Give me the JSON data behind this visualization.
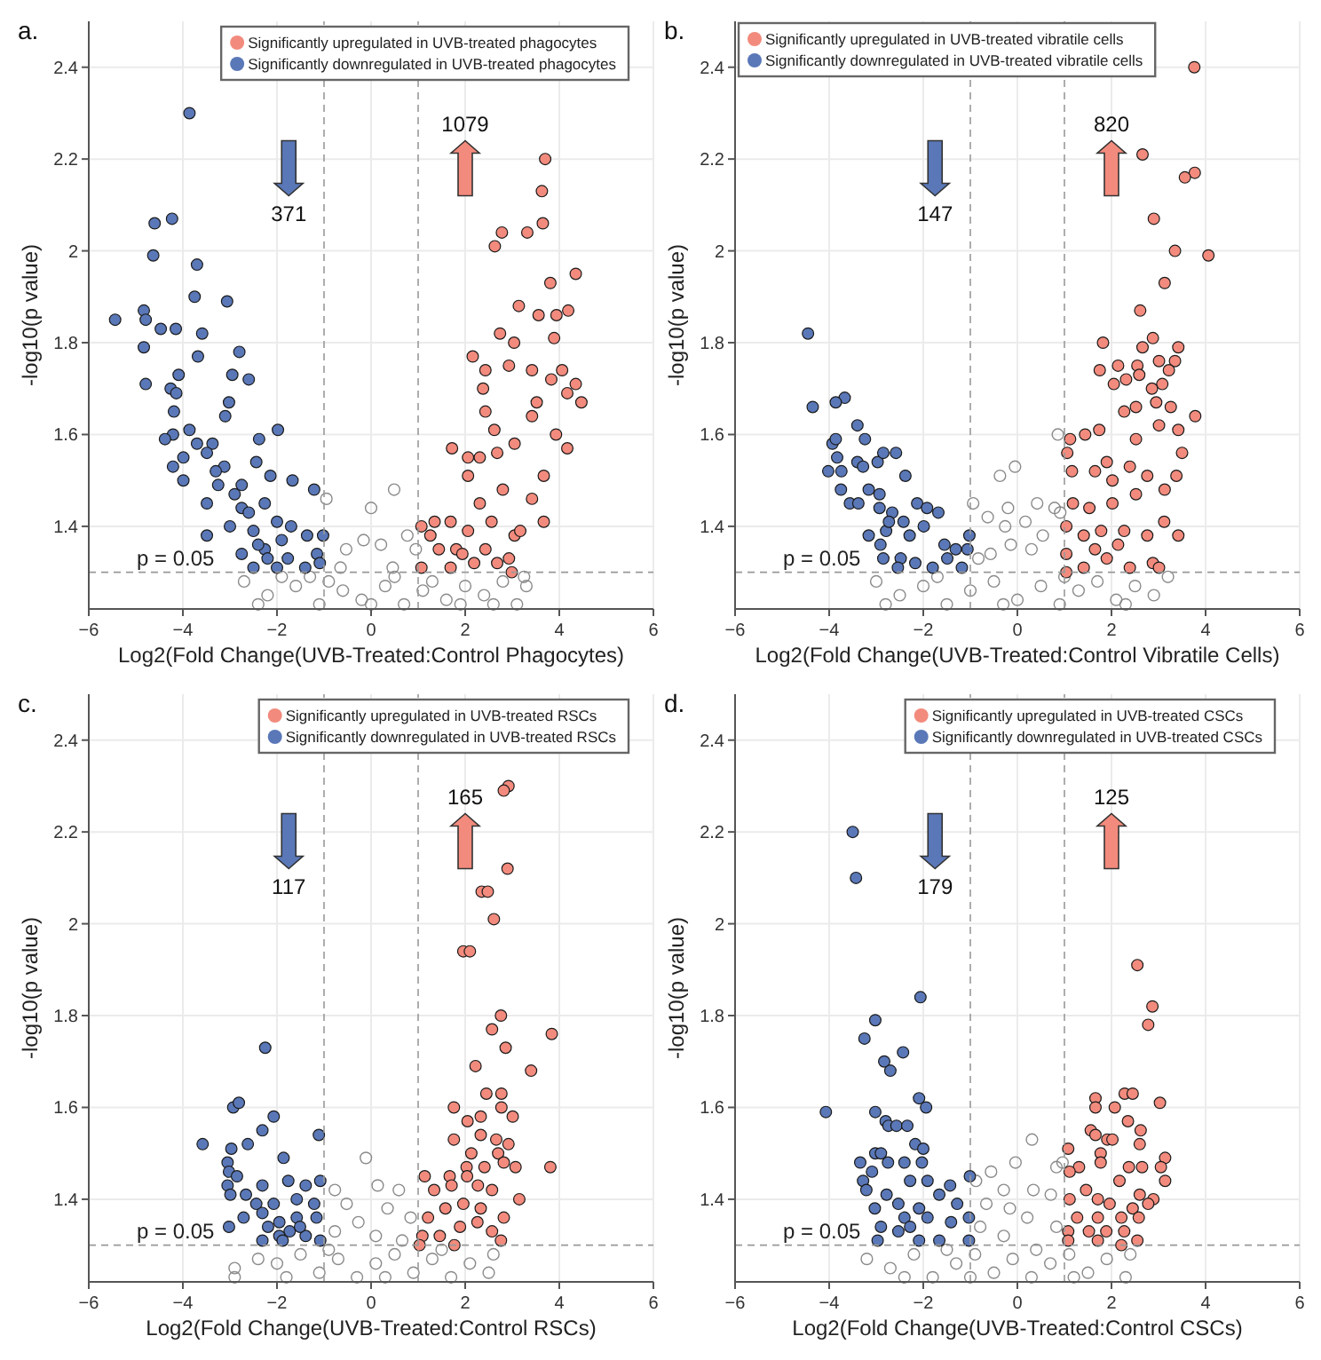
{
  "chart_data": [
    {
      "type": "scatter",
      "title": "a.",
      "xlabel": "Log2(Fold Change(UVB-Treated:Control Phagocytes)",
      "ylabel": "-log10(p value)",
      "xlim": [
        -6,
        6
      ],
      "ylim": [
        1.22,
        2.5
      ],
      "xticks": [
        -6,
        -4,
        -2,
        0,
        2,
        4,
        6
      ],
      "yticks": [
        1.4,
        1.6,
        1.8,
        2,
        2.2,
        2.4
      ],
      "grid": true,
      "legend": "top right",
      "marker": "circle",
      "annotations": [
        "371",
        "1079",
        "p = 0.05"
      ],
      "ref_lines": [
        {
          "axis": "x",
          "value": -1,
          "color": "#999999",
          "line_style": "dashed"
        },
        {
          "axis": "x",
          "value": 1,
          "color": "#999999",
          "line_style": "dashed"
        },
        {
          "axis": "y",
          "value": 1.3,
          "color": "#999999",
          "line_style": "dashed"
        }
      ],
      "series": [
        {
          "color": "#8a8a8a",
          "x": [
            0.49,
            0,
            -0.95,
            -0.16,
            0.77,
            -0.53,
            0.21,
            0.95,
            0.46,
            -0.65,
            -2.7,
            -2.2,
            -1.6,
            -1.1,
            -0.6,
            -0.2,
            0.3,
            0.7,
            1.1,
            1.6,
            2.0,
            2.4,
            2.8,
            3.1,
            3.3,
            -2.4,
            -1.3,
            -0.9,
            0.0,
            0.5,
            1.3,
            1.9,
            2.6,
            -1.9,
            3.25
          ],
          "values": [
            1.48,
            1.44,
            1.46,
            1.37,
            1.38,
            1.35,
            1.36,
            1.35,
            1.31,
            1.31,
            1.28,
            1.25,
            1.27,
            1.23,
            1.26,
            1.24,
            1.27,
            1.23,
            1.26,
            1.24,
            1.27,
            1.25,
            1.28,
            1.23,
            1.27,
            1.23,
            1.29,
            1.28,
            1.23,
            1.29,
            1.28,
            1.23,
            1.23,
            1.29,
            1.29
          ]
        },
        {
          "name": "Significantly upregulated in UVB-treated phagocytes",
          "color": "#f28b7d",
          "x": [
            3.7,
            3.63,
            3.65,
            2.78,
            3.32,
            2.63,
            4.35,
            3.81,
            3.14,
            3.56,
            4.19,
            3.94,
            3.89,
            2.74,
            3.04,
            2.16,
            2.43,
            2.93,
            3.42,
            4.06,
            3.83,
            4.35,
            4.17,
            4.47,
            3.52,
            1.72,
            4.17,
            3.93,
            3.42,
            2.43,
            2.06,
            2.68,
            3.05,
            3.67,
            3.42,
            3.67,
            1.07,
            1.35,
            1.26,
            1.44,
            1.07,
            1.69,
            1.81,
            2.06,
            2.31,
            2.56,
            2.8,
            3.05,
            2.19,
            2.68,
            1.94,
            2.43,
            2.93,
            2.06,
            2.62,
            2.38,
            3.17,
            1.69,
            2.99,
            2.31
          ],
          "values": [
            2.2,
            2.13,
            2.06,
            2.04,
            2.04,
            2.01,
            1.95,
            1.93,
            1.88,
            1.86,
            1.87,
            1.86,
            1.81,
            1.82,
            1.8,
            1.77,
            1.74,
            1.75,
            1.74,
            1.74,
            1.72,
            1.71,
            1.69,
            1.67,
            1.67,
            1.57,
            1.57,
            1.6,
            1.64,
            1.65,
            1.55,
            1.56,
            1.58,
            1.51,
            1.46,
            1.41,
            1.4,
            1.41,
            1.38,
            1.35,
            1.31,
            1.41,
            1.35,
            1.51,
            1.45,
            1.41,
            1.48,
            1.38,
            1.32,
            1.32,
            1.34,
            1.35,
            1.33,
            1.39,
            1.61,
            1.7,
            1.39,
            1.31,
            1.3,
            1.55
          ]
        },
        {
          "name": "Significantly downregulated in UVB-treated phagocytes",
          "color": "#5a78b8",
          "x": [
            -3.86,
            -4.6,
            -4.23,
            -4.63,
            -3.7,
            -5.44,
            -4.83,
            -4.79,
            -3.75,
            -3.06,
            -4.47,
            -4.15,
            -3.59,
            -4.83,
            -2.8,
            -3.68,
            -4.79,
            -4.09,
            -2.95,
            -2.6,
            -4.26,
            -4.14,
            -3.02,
            -4.19,
            -3.1,
            -1.98,
            -4.21,
            -4.38,
            -3.37,
            -3.86,
            -2.38,
            -4.21,
            -3.99,
            -3.49,
            -3.12,
            -2.44,
            -3.99,
            -3.25,
            -2.75,
            -2.14,
            -1.67,
            -1.21,
            -3.49,
            -2.75,
            -2.26,
            -3.49,
            -3.0,
            -2.5,
            -2.0,
            -1.7,
            -1.36,
            -1.02,
            -2.75,
            -2.26,
            -1.77,
            -1.15,
            -2.5,
            -2.0,
            -1.4,
            -1.09,
            -2.9,
            -2.6,
            -3.3,
            -2.4,
            -1.9,
            -3.7,
            -2.2
          ],
          "values": [
            2.3,
            2.06,
            2.07,
            1.99,
            1.97,
            1.85,
            1.87,
            1.85,
            1.9,
            1.89,
            1.83,
            1.83,
            1.82,
            1.79,
            1.78,
            1.77,
            1.71,
            1.73,
            1.73,
            1.72,
            1.7,
            1.69,
            1.67,
            1.65,
            1.64,
            1.61,
            1.6,
            1.59,
            1.58,
            1.61,
            1.59,
            1.53,
            1.55,
            1.56,
            1.53,
            1.54,
            1.5,
            1.49,
            1.49,
            1.51,
            1.5,
            1.48,
            1.45,
            1.44,
            1.45,
            1.38,
            1.4,
            1.39,
            1.41,
            1.4,
            1.38,
            1.38,
            1.34,
            1.35,
            1.33,
            1.34,
            1.31,
            1.31,
            1.31,
            1.32,
            1.47,
            1.43,
            1.52,
            1.36,
            1.37,
            1.58,
            1.33
          ]
        }
      ]
    },
    {
      "type": "scatter",
      "title": "b.",
      "xlabel": "Log2(Fold Change(UVB-Treated:Control Vibratile Cells)",
      "ylabel": "-log10(p value)",
      "xlim": [
        -6,
        6
      ],
      "ylim": [
        1.22,
        2.5
      ],
      "xticks": [
        -6,
        -4,
        -2,
        0,
        2,
        4,
        6
      ],
      "yticks": [
        1.4,
        1.6,
        1.8,
        2,
        2.2,
        2.4
      ],
      "grid": true,
      "legend": "top left",
      "marker": "circle",
      "annotations": [
        "147",
        "820",
        "p = 0.05"
      ],
      "ref_lines": [
        {
          "axis": "x",
          "value": -1,
          "color": "#999999",
          "line_style": "dashed"
        },
        {
          "axis": "x",
          "value": 1,
          "color": "#999999",
          "line_style": "dashed"
        },
        {
          "axis": "y",
          "value": 1.3,
          "color": "#999999",
          "line_style": "dashed"
        }
      ],
      "series": [
        {
          "color": "#8a8a8a",
          "x": [
            0.86,
            -0.05,
            -0.37,
            -0.94,
            -0.2,
            0.42,
            0.79,
            -0.63,
            0.17,
            -0.26,
            -0.14,
            -0.57,
            0.3,
            0.54,
            0.91,
            -0.83,
            -3.0,
            -2.5,
            -2.0,
            -1.5,
            -1.0,
            -0.5,
            0.0,
            0.5,
            0.9,
            1.3,
            1.7,
            2.1,
            2.5,
            2.9,
            3.2,
            -2.8,
            -1.7,
            -0.3,
            1.0,
            2.3
          ],
          "values": [
            1.6,
            1.53,
            1.51,
            1.45,
            1.44,
            1.45,
            1.44,
            1.42,
            1.41,
            1.4,
            1.36,
            1.34,
            1.35,
            1.38,
            1.43,
            1.33,
            1.28,
            1.25,
            1.27,
            1.23,
            1.26,
            1.28,
            1.24,
            1.27,
            1.23,
            1.26,
            1.28,
            1.24,
            1.27,
            1.25,
            1.29,
            1.23,
            1.29,
            1.23,
            1.29,
            1.23
          ]
        },
        {
          "name": "Significantly upregulated in UVB-treated vibratile cells",
          "color": "#f28b7d",
          "x": [
            3.76,
            2.66,
            3.77,
            3.56,
            2.9,
            3.35,
            4.06,
            3.13,
            2.61,
            2.88,
            1.82,
            3.42,
            2.66,
            1.75,
            2.14,
            2.55,
            3.01,
            3.35,
            3.22,
            2.31,
            2.05,
            2.59,
            3.08,
            2.86,
            2.52,
            2.95,
            3.26,
            2.27,
            3.78,
            3.01,
            3.42,
            1.12,
            1.44,
            1.74,
            2.52,
            1.06,
            1.9,
            3.5,
            1.16,
            1.65,
            2.02,
            2.39,
            2.76,
            3.13,
            3.38,
            1.18,
            1.53,
            2.02,
            2.52,
            3.12,
            3.42,
            1.04,
            1.41,
            1.78,
            2.27,
            2.76,
            1.04,
            1.41,
            1.9,
            2.39,
            2.88,
            3.01,
            2.14,
            1.65,
            1.04
          ],
          "values": [
            2.4,
            2.21,
            2.17,
            2.16,
            2.07,
            2.0,
            1.99,
            1.93,
            1.87,
            1.81,
            1.8,
            1.79,
            1.79,
            1.74,
            1.75,
            1.75,
            1.76,
            1.76,
            1.74,
            1.72,
            1.71,
            1.73,
            1.71,
            1.7,
            1.66,
            1.67,
            1.66,
            1.65,
            1.64,
            1.62,
            1.61,
            1.59,
            1.6,
            1.61,
            1.59,
            1.56,
            1.54,
            1.56,
            1.52,
            1.52,
            1.5,
            1.53,
            1.51,
            1.48,
            1.51,
            1.45,
            1.44,
            1.45,
            1.47,
            1.41,
            1.38,
            1.4,
            1.38,
            1.39,
            1.39,
            1.38,
            1.34,
            1.31,
            1.33,
            1.31,
            1.32,
            1.31,
            1.36,
            1.35,
            1.3
          ]
        },
        {
          "name": "Significantly downregulated in UVB-treated vibratile cells",
          "color": "#5a78b8",
          "x": [
            -4.45,
            -4.35,
            -3.67,
            -3.86,
            -3.4,
            -3.24,
            -3.93,
            -3.86,
            -3.83,
            -4.02,
            -3.74,
            -3.4,
            -3.28,
            -2.97,
            -2.85,
            -2.58,
            -3.75,
            -3.56,
            -3.38,
            -3.16,
            -2.93,
            -2.38,
            -2.13,
            -1.92,
            -1.68,
            -2.93,
            -2.66,
            -2.42,
            -3.16,
            -2.79,
            -2.29,
            -1.99,
            -1.55,
            -1.31,
            -1.02,
            -1.06,
            -2.85,
            -2.48,
            -2.17,
            -1.8,
            -1.49,
            -1.18,
            -2.54,
            -2.91,
            -2.73
          ],
          "values": [
            1.82,
            1.66,
            1.68,
            1.67,
            1.62,
            1.59,
            1.58,
            1.59,
            1.55,
            1.52,
            1.52,
            1.54,
            1.53,
            1.54,
            1.56,
            1.56,
            1.48,
            1.45,
            1.45,
            1.48,
            1.47,
            1.51,
            1.45,
            1.44,
            1.43,
            1.44,
            1.43,
            1.41,
            1.38,
            1.39,
            1.38,
            1.4,
            1.36,
            1.35,
            1.38,
            1.35,
            1.33,
            1.33,
            1.32,
            1.31,
            1.33,
            1.31,
            1.31,
            1.36,
            1.41
          ]
        }
      ]
    },
    {
      "type": "scatter",
      "title": "c.",
      "xlabel": "Log2(Fold Change(UVB-Treated:Control RSCs)",
      "ylabel": "-log10(p value)",
      "xlim": [
        -6,
        6
      ],
      "ylim": [
        1.22,
        2.5
      ],
      "xticks": [
        -6,
        -4,
        -2,
        0,
        2,
        4,
        6
      ],
      "yticks": [
        1.4,
        1.6,
        1.8,
        2,
        2.2,
        2.4
      ],
      "grid": true,
      "legend": "top right",
      "marker": "circle",
      "annotations": [
        "117",
        "165",
        "p = 0.05"
      ],
      "ref_lines": [
        {
          "axis": "x",
          "value": -1,
          "color": "#999999",
          "line_style": "dashed"
        },
        {
          "axis": "x",
          "value": 1,
          "color": "#999999",
          "line_style": "dashed"
        },
        {
          "axis": "y",
          "value": 1.3,
          "color": "#999999",
          "line_style": "dashed"
        }
      ],
      "series": [
        {
          "color": "#8a8a8a",
          "x": [
            -0.11,
            0.14,
            -0.77,
            0.59,
            -0.52,
            0.35,
            -0.27,
            0.84,
            -0.77,
            0.1,
            0.66,
            -2.9,
            -2.4,
            -2.9,
            -2.0,
            -1.5,
            -1.1,
            -0.7,
            -0.3,
            0.1,
            0.5,
            0.9,
            1.3,
            1.7,
            2.1,
            2.5,
            2.6,
            -1.8,
            0.3,
            1.5,
            -0.9
          ],
          "values": [
            1.49,
            1.43,
            1.42,
            1.42,
            1.39,
            1.38,
            1.35,
            1.36,
            1.33,
            1.32,
            1.31,
            1.25,
            1.27,
            1.23,
            1.26,
            1.28,
            1.24,
            1.27,
            1.23,
            1.26,
            1.28,
            1.24,
            1.27,
            1.23,
            1.26,
            1.24,
            1.28,
            1.23,
            1.23,
            1.29,
            1.29
          ]
        },
        {
          "name": "Significantly upregulated in UVB-treated RSCs",
          "color": "#f28b7d",
          "x": [
            2.92,
            2.82,
            2.9,
            2.35,
            2.48,
            2.61,
            1.96,
            2.1,
            2.76,
            2.57,
            3.84,
            2.86,
            2.22,
            3.4,
            2.45,
            2.77,
            1.76,
            2.77,
            3.01,
            2.05,
            2.33,
            1.76,
            2.33,
            2.66,
            2.92,
            2.13,
            2.7,
            2.03,
            2.41,
            2.82,
            3.07,
            3.81,
            2.04,
            1.67,
            3.15,
            1.14,
            1.34,
            1.71,
            2.27,
            2.57,
            1.21,
            1.58,
            1.96,
            2.33,
            2.82,
            1.09,
            1.46,
            1.89,
            2.26,
            2.57,
            2.76,
            1.77,
            1.03
          ],
          "values": [
            2.3,
            2.29,
            2.12,
            2.07,
            2.07,
            2.01,
            1.94,
            1.94,
            1.8,
            1.77,
            1.76,
            1.73,
            1.69,
            1.68,
            1.63,
            1.63,
            1.6,
            1.6,
            1.58,
            1.57,
            1.58,
            1.53,
            1.54,
            1.53,
            1.52,
            1.5,
            1.5,
            1.47,
            1.47,
            1.48,
            1.47,
            1.47,
            1.45,
            1.45,
            1.4,
            1.45,
            1.42,
            1.43,
            1.43,
            1.42,
            1.36,
            1.38,
            1.39,
            1.38,
            1.36,
            1.32,
            1.32,
            1.34,
            1.35,
            1.33,
            1.31,
            1.3,
            1.3
          ]
        },
        {
          "name": "Significantly downregulated in UVB-treated RSCs",
          "color": "#5a78b8",
          "x": [
            -2.25,
            -3.58,
            -2.93,
            -2.81,
            -2.07,
            -2.31,
            -2.62,
            -2.97,
            -1.11,
            -1.86,
            -3.05,
            -3.02,
            -2.85,
            -3.05,
            -2.31,
            -1.76,
            -1.39,
            -1.08,
            -2.99,
            -2.66,
            -2.44,
            -2.07,
            -1.58,
            -1.21,
            -2.71,
            -2.31,
            -1.95,
            -1.58,
            -1.16,
            -3.02,
            -2.19,
            -1.73,
            -1.95,
            -1.39,
            -1.08,
            -2.31,
            -1.88,
            -1.51
          ],
          "values": [
            1.73,
            1.52,
            1.6,
            1.61,
            1.58,
            1.55,
            1.52,
            1.51,
            1.54,
            1.49,
            1.48,
            1.46,
            1.45,
            1.43,
            1.43,
            1.44,
            1.43,
            1.44,
            1.41,
            1.41,
            1.39,
            1.39,
            1.4,
            1.39,
            1.36,
            1.37,
            1.35,
            1.36,
            1.36,
            1.34,
            1.34,
            1.33,
            1.32,
            1.32,
            1.31,
            1.31,
            1.31,
            1.34
          ]
        }
      ]
    },
    {
      "type": "scatter",
      "title": "d.",
      "xlabel": "Log2(Fold Change(UVB-Treated:Control CSCs)",
      "ylabel": "-log10(p value)",
      "xlim": [
        -6,
        6
      ],
      "ylim": [
        1.22,
        2.5
      ],
      "xticks": [
        -6,
        -4,
        -2,
        0,
        2,
        4,
        6
      ],
      "yticks": [
        1.4,
        1.6,
        1.8,
        2,
        2.2,
        2.4
      ],
      "grid": true,
      "legend": "top right",
      "marker": "circle",
      "annotations": [
        "179",
        "125",
        "p = 0.05"
      ],
      "ref_lines": [
        {
          "axis": "x",
          "value": -1,
          "color": "#999999",
          "line_style": "dashed"
        },
        {
          "axis": "x",
          "value": 1,
          "color": "#999999",
          "line_style": "dashed"
        },
        {
          "axis": "y",
          "value": 1.3,
          "color": "#999999",
          "line_style": "dashed"
        }
      ],
      "series": [
        {
          "color": "#8a8a8a",
          "x": [
            -0.04,
            0.31,
            -0.56,
            -0.88,
            0.96,
            0.83,
            -0.29,
            0.34,
            -0.66,
            0.71,
            -0.16,
            0.21,
            -0.79,
            0.83,
            -0.29,
            -3.2,
            -2.7,
            -2.2,
            -1.8,
            -1.3,
            -0.9,
            -0.5,
            -0.1,
            0.3,
            0.7,
            1.1,
            1.5,
            1.9,
            2.3,
            2.4,
            -2.4,
            -1.0,
            1.2,
            0.4,
            -1.5
          ],
          "values": [
            1.48,
            1.53,
            1.46,
            1.44,
            1.48,
            1.47,
            1.42,
            1.42,
            1.39,
            1.41,
            1.38,
            1.36,
            1.34,
            1.34,
            1.32,
            1.27,
            1.25,
            1.28,
            1.23,
            1.26,
            1.28,
            1.24,
            1.27,
            1.23,
            1.26,
            1.28,
            1.24,
            1.27,
            1.23,
            1.28,
            1.23,
            1.23,
            1.23,
            1.29,
            1.29
          ]
        },
        {
          "name": "Significantly upregulated in UVB-treated CSCs",
          "color": "#f28b7d",
          "x": [
            2.55,
            2.87,
            2.78,
            2.28,
            2.45,
            3.03,
            1.66,
            1.66,
            2.07,
            2.35,
            2.62,
            1.56,
            1.66,
            1.91,
            2.02,
            1.08,
            1.77,
            2.6,
            3.14,
            1.77,
            2.65,
            1.31,
            2.37,
            3.05,
            1.11,
            3.14,
            2.17,
            2.6,
            2.89,
            1.11,
            1.46,
            1.71,
            1.96,
            2.45,
            2.78,
            1.27,
            1.71,
            2.21,
            2.58,
            1.08,
            1.52,
            1.89,
            2.27,
            2.55,
            1.08,
            1.71,
            2.21
          ],
          "values": [
            1.91,
            1.82,
            1.78,
            1.63,
            1.63,
            1.61,
            1.62,
            1.6,
            1.6,
            1.57,
            1.55,
            1.55,
            1.54,
            1.53,
            1.53,
            1.51,
            1.5,
            1.52,
            1.49,
            1.48,
            1.47,
            1.47,
            1.47,
            1.47,
            1.46,
            1.44,
            1.44,
            1.41,
            1.4,
            1.4,
            1.42,
            1.4,
            1.39,
            1.38,
            1.39,
            1.36,
            1.36,
            1.36,
            1.36,
            1.33,
            1.33,
            1.33,
            1.33,
            1.31,
            1.31,
            1.31,
            1.3
          ]
        },
        {
          "name": "Significantly downregulated in UVB-treated CSCs",
          "color": "#5a78b8",
          "x": [
            -3.5,
            -3.43,
            -2.06,
            -3.02,
            -3.25,
            -2.43,
            -2.83,
            -2.7,
            -4.07,
            -2.09,
            -1.94,
            -3.02,
            -2.8,
            -2.74,
            -2.57,
            -2.34,
            -2.17,
            -2.0,
            -3.02,
            -2.9,
            -3.34,
            -2.75,
            -2.4,
            -2.03,
            -3.09,
            -3.28,
            -2.28,
            -1.91,
            -1.43,
            -1.01,
            -3.21,
            -2.78,
            -1.66,
            -3.03,
            -2.53,
            -2.09,
            -1.28,
            -2.9,
            -2.4,
            -1.91,
            -1.41,
            -1.03,
            -2.97,
            -2.53,
            -2.09,
            -1.66,
            -1.03,
            -2.28
          ],
          "values": [
            2.2,
            2.1,
            1.84,
            1.79,
            1.75,
            1.72,
            1.7,
            1.68,
            1.59,
            1.62,
            1.6,
            1.59,
            1.57,
            1.56,
            1.56,
            1.56,
            1.52,
            1.51,
            1.5,
            1.5,
            1.48,
            1.48,
            1.48,
            1.48,
            1.46,
            1.44,
            1.44,
            1.44,
            1.43,
            1.45,
            1.42,
            1.41,
            1.41,
            1.38,
            1.39,
            1.38,
            1.39,
            1.34,
            1.36,
            1.36,
            1.35,
            1.36,
            1.31,
            1.33,
            1.31,
            1.31,
            1.31,
            1.34
          ]
        }
      ]
    }
  ]
}
